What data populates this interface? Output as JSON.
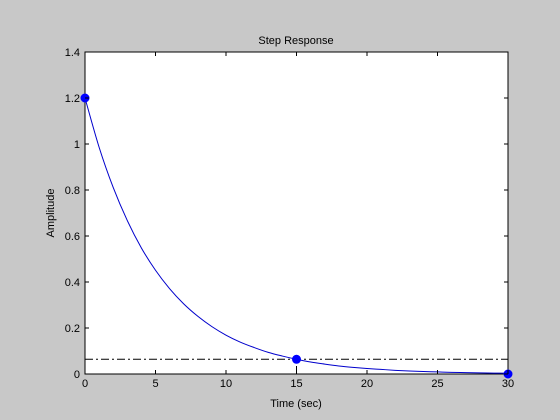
{
  "chart_data": {
    "type": "line",
    "title": "Step Response",
    "xlabel": "Time (sec)",
    "ylabel": "Amplitude",
    "xlim": [
      0,
      30
    ],
    "ylim": [
      0,
      1.4
    ],
    "xticks": [
      0,
      5,
      10,
      15,
      20,
      25,
      30
    ],
    "yticks": [
      0,
      0.2,
      0.4,
      0.6,
      0.8,
      1,
      1.2,
      1.4
    ],
    "xtick_labels": [
      "0",
      "5",
      "10",
      "15",
      "20",
      "25",
      "30"
    ],
    "ytick_labels": [
      "0",
      "0.2",
      "0.4",
      "0.6",
      "0.8",
      "1",
      "1.2",
      "1.4"
    ],
    "grid": false,
    "series": [
      {
        "color": "#0000cc",
        "style": "solid",
        "x": [
          0,
          1,
          2,
          3,
          4,
          5,
          6,
          7,
          8,
          9,
          10,
          11,
          12,
          13,
          14,
          15,
          16,
          17,
          18,
          19,
          20,
          21,
          22,
          23,
          24,
          25,
          26,
          27,
          28,
          29,
          30
        ],
        "y": [
          1.2,
          0.986,
          0.811,
          0.667,
          0.548,
          0.451,
          0.371,
          0.305,
          0.251,
          0.206,
          0.169,
          0.139,
          0.115,
          0.094,
          0.078,
          0.064,
          0.052,
          0.043,
          0.035,
          0.029,
          0.024,
          0.02,
          0.016,
          0.013,
          0.011,
          0.009,
          0.007,
          0.006,
          0.005,
          0.004,
          0.003
        ]
      }
    ],
    "markers": [
      {
        "x": 0,
        "y": 1.2
      },
      {
        "x": 15,
        "y": 0.064
      },
      {
        "x": 30,
        "y": 0.0
      }
    ],
    "reference_lines": [
      {
        "orientation": "horizontal",
        "y": 0.064,
        "style": "dash-dot",
        "color": "#000000"
      },
      {
        "orientation": "vertical",
        "x": 15,
        "y_to": 0.064,
        "style": "dash-dot",
        "color": "#000000"
      },
      {
        "orientation": "vertical",
        "x": 0,
        "y_to": 1.2,
        "style": "dash-dot",
        "color": "#000000"
      }
    ]
  }
}
